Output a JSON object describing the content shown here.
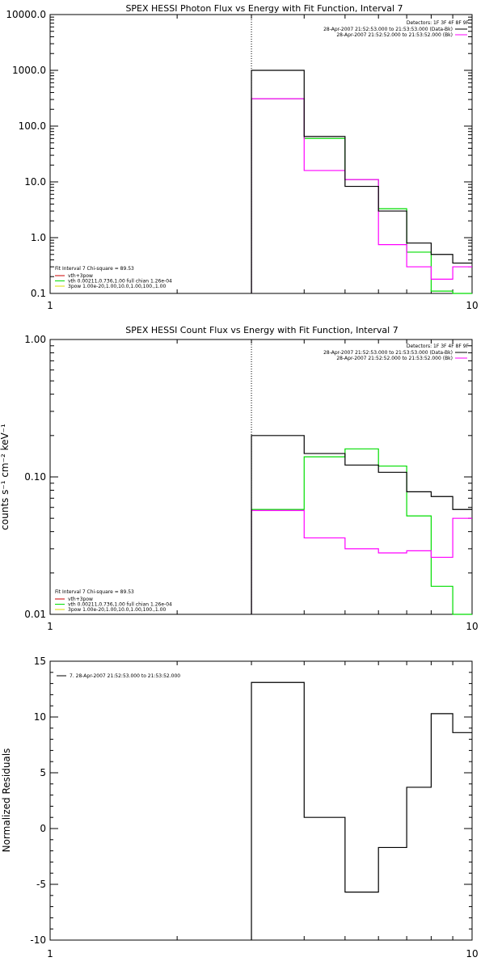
{
  "chart_data": [
    {
      "type": "line",
      "title": "SPEX HESSI Photon Flux vs Energy with Fit Function, Interval 7",
      "ylabel": "",
      "x_scale": "log",
      "y_scale": "log",
      "xlim": [
        1,
        10
      ],
      "ylim": [
        0.1,
        10000
      ],
      "x_tick_labels": [
        "1",
        "10"
      ],
      "y_tick_labels": [
        "0.1",
        "1.0",
        "10.0",
        "100.0",
        "1000.0",
        "10000.0"
      ],
      "y_ticks": [
        0.1,
        1,
        10,
        100,
        1000,
        10000
      ],
      "grid": false,
      "marker_x": 3,
      "bin_edges": [
        3,
        4,
        5,
        6,
        7,
        8,
        9,
        10
      ],
      "series": [
        {
          "name": "",
          "color": "#000000",
          "values": [
            1000,
            65,
            8.3,
            3.0,
            0.8,
            0.5,
            0.35
          ]
        },
        {
          "name": "",
          "color": "#ff00ff",
          "values": [
            310,
            16,
            11,
            0.75,
            0.3,
            0.18,
            0.3
          ]
        },
        {
          "name": "",
          "color": "#00dd00",
          "values": [
            310,
            60,
            11,
            3.3,
            0.55,
            0.11,
            0.07
          ]
        }
      ],
      "detectors_label": "Detectors: 1F 3F 4F 8F 9F",
      "legend_right": [
        {
          "text": "28-Apr-2007 21:52:53.000 to 21:53:53.000 (Data-Bk)",
          "color": "#000000"
        },
        {
          "text": "28-Apr-2007 21:52:52.000 to 21:53:52.000 (Bk)",
          "color": "#ff00ff"
        }
      ],
      "fit_header": "Fit Interval 7   Chi-square = 89.53",
      "legend_left": [
        {
          "text": "vth+3pow",
          "color": "#cc0000"
        },
        {
          "text": "vth 0.00211,0.736,1.00  full chian 1.26e-04",
          "color": "#00dd00"
        },
        {
          "text": "3pow 1.00e-20,1.00,10.0,1.00,100.,1.00",
          "color": "#dddd00"
        }
      ]
    },
    {
      "type": "line",
      "title": "SPEX HESSI Count Flux vs Energy with Fit Function, Interval 7",
      "ylabel": "counts s⁻¹ cm⁻² keV⁻¹",
      "x_scale": "log",
      "y_scale": "log",
      "xlim": [
        1,
        10
      ],
      "ylim": [
        0.01,
        1.0
      ],
      "x_tick_labels": [
        "1",
        "10"
      ],
      "y_tick_labels": [
        "0.01",
        "0.10",
        "1.00"
      ],
      "y_ticks": [
        0.01,
        0.1,
        1.0
      ],
      "grid": false,
      "marker_x": 3,
      "bin_edges": [
        3,
        4,
        5,
        6,
        7,
        8,
        9,
        10
      ],
      "series": [
        {
          "name": "",
          "color": "#000000",
          "values": [
            0.2,
            0.148,
            0.122,
            0.108,
            0.078,
            0.072,
            0.058
          ]
        },
        {
          "name": "",
          "color": "#ff00ff",
          "values": [
            0.057,
            0.036,
            0.03,
            0.028,
            0.029,
            0.026,
            0.05
          ]
        },
        {
          "name": "",
          "color": "#00dd00",
          "values": [
            0.058,
            0.14,
            0.16,
            0.12,
            0.052,
            0.016,
            0.009
          ]
        }
      ],
      "detectors_label": "Detectors: 1F 3F 4F 8F 9F",
      "legend_right": [
        {
          "text": "28-Apr-2007 21:52:53.000 to 21:53:53.000 (Data-Bk)",
          "color": "#000000"
        },
        {
          "text": "28-Apr-2007 21:52:52.000 to 21:53:52.000 (Bk)",
          "color": "#ff00ff"
        }
      ],
      "fit_header": "Fit Interval 7   Chi-square = 89.53",
      "legend_left": [
        {
          "text": "vth+3pow",
          "color": "#cc0000"
        },
        {
          "text": "vth 0.00211,0.736,1.00  full chian 1.26e-04",
          "color": "#00dd00"
        },
        {
          "text": "3pow 1.00e-20,1.00,10.0,1.00,100.,1.00",
          "color": "#dddd00"
        }
      ]
    },
    {
      "type": "line",
      "title": "",
      "ylabel": "Normalized Residuals",
      "x_scale": "log",
      "y_scale": "linear",
      "xlim": [
        1,
        10
      ],
      "ylim": [
        -10,
        15
      ],
      "x_tick_labels": [
        "1",
        "10"
      ],
      "y_tick_labels": [
        "-10",
        "-5",
        "0",
        "5",
        "10",
        "15"
      ],
      "y_ticks": [
        -10,
        -5,
        0,
        5,
        10,
        15
      ],
      "grid": false,
      "bin_edges": [
        3,
        4,
        5,
        6,
        7,
        8,
        9,
        10
      ],
      "series": [
        {
          "name": "7. 28-Apr-2007 21:52:53.000 to 21:53:52.000",
          "color": "#000000",
          "values": [
            13.1,
            1.0,
            -5.7,
            -1.7,
            3.7,
            10.3,
            8.6
          ]
        }
      ]
    }
  ]
}
